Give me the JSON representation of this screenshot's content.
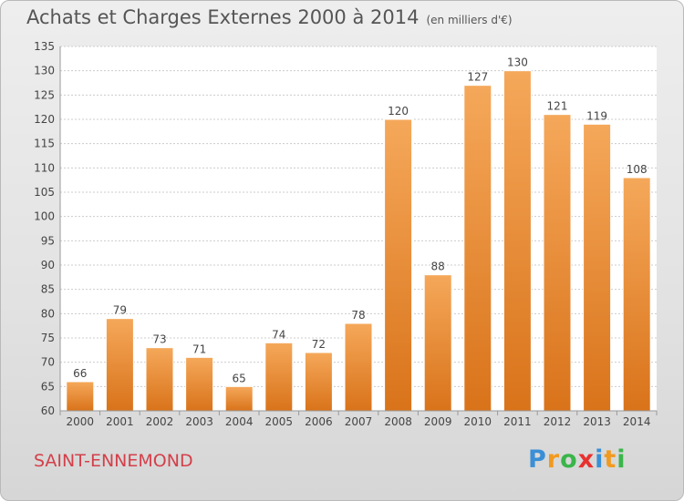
{
  "header": {
    "title": "Achats et Charges Externes 2000 à 2014",
    "unit": "(en milliers d'€)"
  },
  "footer": {
    "commune": "SAINT-ENNEMOND",
    "logo": {
      "letters": [
        "P",
        "r",
        "o",
        "x",
        "i",
        "t",
        "i"
      ],
      "colors": [
        "#3a8fd6",
        "#f29a1f",
        "#3ab54a",
        "#e8312f",
        "#3a8fd6",
        "#f29a1f",
        "#3ab54a"
      ]
    }
  },
  "chart_data": {
    "type": "bar",
    "title": "Achats et Charges Externes 2000 à 2014",
    "subtitle": "(en milliers d'€)",
    "xlabel": "",
    "ylabel": "",
    "categories": [
      "2000",
      "2001",
      "2002",
      "2003",
      "2004",
      "2005",
      "2006",
      "2007",
      "2008",
      "2009",
      "2010",
      "2011",
      "2012",
      "2013",
      "2014"
    ],
    "values": [
      66,
      79,
      73,
      71,
      65,
      74,
      72,
      78,
      120,
      88,
      127,
      130,
      121,
      119,
      108
    ],
    "ylim": [
      60,
      135
    ],
    "yticks": [
      60,
      65,
      70,
      75,
      80,
      85,
      90,
      95,
      100,
      105,
      110,
      115,
      120,
      125,
      130,
      135
    ],
    "grid": true,
    "legend": "none",
    "colors": {
      "bar_top": "#f5a85a",
      "bar_bottom": "#d9731a",
      "grid": "#cccccc",
      "axis": "#999999",
      "text": "#444444"
    }
  }
}
